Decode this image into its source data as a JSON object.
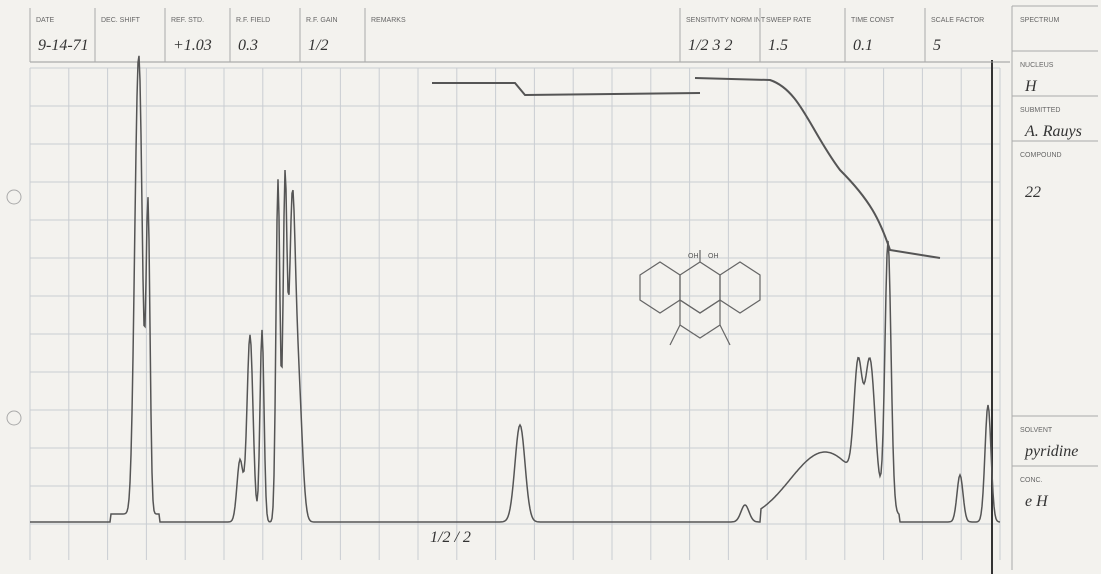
{
  "header": {
    "fields": [
      {
        "label": "DATE",
        "value": "9-14-71"
      },
      {
        "label": "DEC. SHIFT"
      },
      {
        "label": "REF. STD.",
        "value": "+1.03"
      },
      {
        "label": "R.F. FIELD",
        "value": "0.3"
      },
      {
        "label": "R.F. GAIN",
        "value": "1/2"
      },
      {
        "label": "REMARKS"
      },
      {
        "label": "SENSITIVITY NORM INT",
        "value": "1/2 3 2"
      },
      {
        "label": "SWEEP RATE",
        "value": "1.5"
      },
      {
        "label": "TIME CONST",
        "value": "0.1"
      },
      {
        "label": "SCALE FACTOR",
        "value": "5"
      }
    ]
  },
  "side": [
    {
      "label": "SPECTRUM"
    },
    {
      "label": "NUCLEUS",
      "value": "H"
    },
    {
      "label": "SUBMITTED",
      "value": "A. Rauys"
    },
    {
      "label": "COMPOUND",
      "value": "22"
    },
    {
      "label": "SOLVENT",
      "value": "pyridine"
    },
    {
      "label": "CONC.",
      "value": "e H"
    }
  ],
  "annotations": {
    "gain_note": "1/2 / 2",
    "structure_labels": [
      "OH",
      "OH"
    ]
  }
}
